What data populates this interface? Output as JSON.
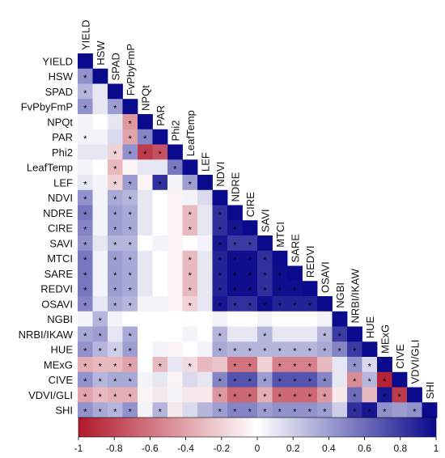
{
  "chart_data": {
    "type": "heatmap",
    "variables": [
      "YIELD",
      "HSW",
      "SPAD",
      "FvPbyFmP",
      "NPQt",
      "PAR",
      "Phi2",
      "LeafTemp",
      "LEF",
      "NDVI",
      "NDRE",
      "CIRE",
      "SAVI",
      "MTCI",
      "SARE",
      "REDVI",
      "OSAVI",
      "NGBI",
      "NRBI/IKAW",
      "HUE",
      "MExG",
      "CIVE",
      "VDVI/GLI",
      "SHI"
    ],
    "lower_triangle": [
      [],
      [
        0.45
      ],
      [
        0.3,
        0.1
      ],
      [
        0.45,
        0.1,
        0.4
      ],
      [
        0.05,
        0.0,
        0.1,
        -0.45
      ],
      [
        0.05,
        0.05,
        0.15,
        -0.4,
        0.5
      ],
      [
        0.1,
        0.1,
        -0.2,
        0.45,
        -0.85,
        -0.75
      ],
      [
        0.05,
        0.0,
        -0.3,
        -0.05,
        0.1,
        0.1,
        0.55
      ],
      [
        0.1,
        0.05,
        -0.2,
        0.4,
        -0.05,
        0.85,
        0.05,
        0.4
      ],
      [
        0.45,
        0.05,
        0.35,
        0.3,
        0.1,
        0.0,
        -0.05,
        0.05,
        0.15
      ],
      [
        0.55,
        0.05,
        0.4,
        0.35,
        0.1,
        0.0,
        -0.05,
        -0.3,
        0.1,
        0.85
      ],
      [
        0.5,
        0.05,
        0.4,
        0.35,
        0.1,
        0.0,
        -0.05,
        -0.3,
        0.1,
        0.85,
        0.95
      ],
      [
        0.45,
        0.1,
        0.3,
        0.3,
        0.0,
        0.05,
        -0.05,
        0.0,
        0.05,
        0.95,
        0.8,
        0.8
      ],
      [
        0.55,
        0.05,
        0.4,
        0.35,
        0.1,
        0.0,
        -0.05,
        -0.3,
        0.1,
        0.9,
        0.98,
        0.98,
        0.85
      ],
      [
        0.55,
        0.05,
        0.4,
        0.35,
        0.1,
        0.0,
        -0.05,
        -0.3,
        0.1,
        0.9,
        0.98,
        0.98,
        0.85,
        0.98
      ],
      [
        0.55,
        0.05,
        0.4,
        0.35,
        0.1,
        0.0,
        -0.05,
        -0.3,
        0.1,
        0.9,
        0.98,
        0.98,
        0.85,
        0.98,
        0.98
      ],
      [
        0.5,
        0.1,
        0.35,
        0.3,
        0.05,
        0.05,
        -0.05,
        -0.2,
        0.1,
        0.95,
        0.85,
        0.85,
        0.98,
        0.9,
        0.9,
        0.9
      ],
      [
        0.05,
        0.3,
        0.05,
        0.0,
        0.0,
        0.0,
        0.0,
        0.0,
        0.0,
        0.05,
        0.0,
        0.0,
        0.05,
        0.0,
        0.0,
        0.0,
        0.05
      ],
      [
        0.35,
        0.4,
        0.1,
        0.35,
        0.0,
        0.0,
        0.0,
        0.05,
        0.0,
        0.3,
        0.1,
        0.1,
        0.3,
        0.1,
        0.1,
        0.1,
        0.3,
        0.8
      ],
      [
        0.45,
        0.3,
        0.2,
        0.4,
        0.0,
        0.05,
        -0.05,
        0.0,
        0.05,
        0.35,
        0.3,
        0.3,
        0.3,
        0.3,
        0.3,
        0.3,
        0.35,
        0.5,
        0.8
      ],
      [
        -0.35,
        -0.3,
        -0.3,
        -0.4,
        0.0,
        -0.3,
        0.1,
        -0.15,
        -0.3,
        -0.25,
        -0.6,
        -0.6,
        -0.2,
        -0.55,
        -0.55,
        -0.55,
        -0.3,
        0.1,
        0.45,
        0.15
      ],
      [
        0.45,
        0.3,
        0.35,
        0.35,
        0.05,
        0.1,
        -0.05,
        0.15,
        0.1,
        0.5,
        0.7,
        0.7,
        0.4,
        0.7,
        0.7,
        0.7,
        0.5,
        0.1,
        -0.5,
        0.3,
        -0.95
      ],
      [
        -0.4,
        -0.3,
        -0.35,
        -0.35,
        -0.05,
        -0.1,
        0.05,
        -0.1,
        -0.1,
        -0.45,
        -0.65,
        -0.65,
        -0.35,
        -0.65,
        -0.65,
        -0.65,
        -0.45,
        -0.1,
        0.6,
        -0.3,
        0.95,
        -0.85
      ],
      [
        0.45,
        0.35,
        0.3,
        0.45,
        0.05,
        0.3,
        -0.1,
        0.15,
        0.3,
        0.4,
        0.5,
        0.5,
        0.4,
        0.45,
        0.45,
        0.45,
        0.4,
        0.2,
        0.85,
        0.95,
        0.45,
        0.4,
        0.45
      ]
    ],
    "significant_pairs": [
      [
        1,
        0
      ],
      [
        2,
        0
      ],
      [
        3,
        0
      ],
      [
        3,
        2
      ],
      [
        4,
        3
      ],
      [
        5,
        0
      ],
      [
        5,
        3
      ],
      [
        5,
        4
      ],
      [
        6,
        2
      ],
      [
        6,
        3
      ],
      [
        6,
        4
      ],
      [
        6,
        5
      ],
      [
        7,
        2
      ],
      [
        7,
        6
      ],
      [
        8,
        0
      ],
      [
        8,
        2
      ],
      [
        8,
        3
      ],
      [
        8,
        5
      ],
      [
        8,
        7
      ],
      [
        9,
        0
      ],
      [
        9,
        2
      ],
      [
        9,
        3
      ],
      [
        10,
        0
      ],
      [
        10,
        2
      ],
      [
        10,
        3
      ],
      [
        10,
        7
      ],
      [
        10,
        9
      ],
      [
        11,
        0
      ],
      [
        11,
        2
      ],
      [
        11,
        3
      ],
      [
        11,
        7
      ],
      [
        11,
        9
      ],
      [
        11,
        10
      ],
      [
        12,
        0
      ],
      [
        12,
        2
      ],
      [
        12,
        3
      ],
      [
        12,
        9
      ],
      [
        12,
        10
      ],
      [
        12,
        11
      ],
      [
        13,
        0
      ],
      [
        13,
        2
      ],
      [
        13,
        3
      ],
      [
        13,
        7
      ],
      [
        13,
        9
      ],
      [
        13,
        10
      ],
      [
        13,
        11
      ],
      [
        13,
        12
      ],
      [
        14,
        0
      ],
      [
        14,
        2
      ],
      [
        14,
        3
      ],
      [
        14,
        7
      ],
      [
        14,
        9
      ],
      [
        14,
        10
      ],
      [
        14,
        11
      ],
      [
        14,
        12
      ],
      [
        14,
        13
      ],
      [
        15,
        0
      ],
      [
        15,
        2
      ],
      [
        15,
        3
      ],
      [
        15,
        7
      ],
      [
        15,
        9
      ],
      [
        15,
        10
      ],
      [
        15,
        11
      ],
      [
        15,
        12
      ],
      [
        15,
        13
      ],
      [
        15,
        14
      ],
      [
        16,
        0
      ],
      [
        16,
        2
      ],
      [
        16,
        3
      ],
      [
        16,
        7
      ],
      [
        16,
        9
      ],
      [
        16,
        10
      ],
      [
        16,
        11
      ],
      [
        16,
        12
      ],
      [
        16,
        13
      ],
      [
        16,
        14
      ],
      [
        16,
        15
      ],
      [
        17,
        1
      ],
      [
        18,
        0
      ],
      [
        18,
        1
      ],
      [
        18,
        3
      ],
      [
        18,
        9
      ],
      [
        18,
        12
      ],
      [
        18,
        16
      ],
      [
        18,
        17
      ],
      [
        19,
        0
      ],
      [
        19,
        1
      ],
      [
        19,
        2
      ],
      [
        19,
        3
      ],
      [
        19,
        9
      ],
      [
        19,
        10
      ],
      [
        19,
        11
      ],
      [
        19,
        12
      ],
      [
        19,
        13
      ],
      [
        19,
        14
      ],
      [
        19,
        15
      ],
      [
        19,
        16
      ],
      [
        19,
        17
      ],
      [
        19,
        18
      ],
      [
        20,
        0
      ],
      [
        20,
        1
      ],
      [
        20,
        2
      ],
      [
        20,
        3
      ],
      [
        20,
        5
      ],
      [
        20,
        7
      ],
      [
        20,
        10
      ],
      [
        20,
        11
      ],
      [
        20,
        13
      ],
      [
        20,
        14
      ],
      [
        20,
        15
      ],
      [
        20,
        18
      ],
      [
        20,
        19
      ],
      [
        21,
        0
      ],
      [
        21,
        1
      ],
      [
        21,
        2
      ],
      [
        21,
        3
      ],
      [
        21,
        9
      ],
      [
        21,
        10
      ],
      [
        21,
        11
      ],
      [
        21,
        12
      ],
      [
        21,
        13
      ],
      [
        21,
        14
      ],
      [
        21,
        15
      ],
      [
        21,
        16
      ],
      [
        21,
        18
      ],
      [
        21,
        19
      ],
      [
        21,
        20
      ],
      [
        22,
        0
      ],
      [
        22,
        1
      ],
      [
        22,
        2
      ],
      [
        22,
        3
      ],
      [
        22,
        9
      ],
      [
        22,
        10
      ],
      [
        22,
        11
      ],
      [
        22,
        12
      ],
      [
        22,
        13
      ],
      [
        22,
        14
      ],
      [
        22,
        15
      ],
      [
        22,
        16
      ],
      [
        22,
        18
      ],
      [
        22,
        20
      ],
      [
        22,
        21
      ],
      [
        23,
        0
      ],
      [
        23,
        1
      ],
      [
        23,
        2
      ],
      [
        23,
        3
      ],
      [
        23,
        5
      ],
      [
        23,
        9
      ],
      [
        23,
        10
      ],
      [
        23,
        11
      ],
      [
        23,
        12
      ],
      [
        23,
        13
      ],
      [
        23,
        14
      ],
      [
        23,
        15
      ],
      [
        23,
        16
      ],
      [
        23,
        18
      ],
      [
        23,
        19
      ],
      [
        23,
        20
      ],
      [
        23,
        22
      ]
    ],
    "significance_marker": "*",
    "colorbar": {
      "min": -1,
      "max": 1,
      "ticks": [
        "-1",
        "-0.8",
        "-0.6",
        "-0.4",
        "-0.2",
        "0",
        "0.2",
        "0.4",
        "0.6",
        "0.8",
        "1"
      ],
      "colors": {
        "negative": "#b2182b",
        "neutral": "#ffffff",
        "positive": "#0a0a8c"
      }
    },
    "diagonal_value": 1
  }
}
